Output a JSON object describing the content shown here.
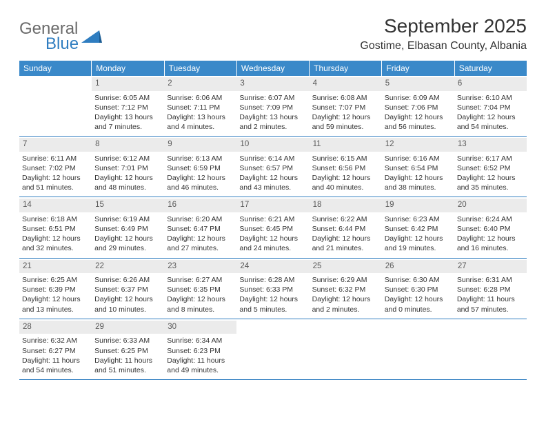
{
  "logo": {
    "word1": "General",
    "word2": "Blue"
  },
  "title": "September 2025",
  "location": "Gostime, Elbasan County, Albania",
  "colors": {
    "header_bg": "#3a89c9",
    "header_text": "#ffffff",
    "daynum_bg": "#ebebeb",
    "daynum_text": "#5a5a5a",
    "border": "#2f7dc0",
    "body_text": "#333333",
    "logo_gray": "#6b6b6b",
    "logo_blue": "#2f7dc0"
  },
  "day_names": [
    "Sunday",
    "Monday",
    "Tuesday",
    "Wednesday",
    "Thursday",
    "Friday",
    "Saturday"
  ],
  "weeks": [
    [
      null,
      {
        "n": "1",
        "sr": "Sunrise: 6:05 AM",
        "ss": "Sunset: 7:12 PM",
        "dl": "Daylight: 13 hours and 7 minutes."
      },
      {
        "n": "2",
        "sr": "Sunrise: 6:06 AM",
        "ss": "Sunset: 7:11 PM",
        "dl": "Daylight: 13 hours and 4 minutes."
      },
      {
        "n": "3",
        "sr": "Sunrise: 6:07 AM",
        "ss": "Sunset: 7:09 PM",
        "dl": "Daylight: 13 hours and 2 minutes."
      },
      {
        "n": "4",
        "sr": "Sunrise: 6:08 AM",
        "ss": "Sunset: 7:07 PM",
        "dl": "Daylight: 12 hours and 59 minutes."
      },
      {
        "n": "5",
        "sr": "Sunrise: 6:09 AM",
        "ss": "Sunset: 7:06 PM",
        "dl": "Daylight: 12 hours and 56 minutes."
      },
      {
        "n": "6",
        "sr": "Sunrise: 6:10 AM",
        "ss": "Sunset: 7:04 PM",
        "dl": "Daylight: 12 hours and 54 minutes."
      }
    ],
    [
      {
        "n": "7",
        "sr": "Sunrise: 6:11 AM",
        "ss": "Sunset: 7:02 PM",
        "dl": "Daylight: 12 hours and 51 minutes."
      },
      {
        "n": "8",
        "sr": "Sunrise: 6:12 AM",
        "ss": "Sunset: 7:01 PM",
        "dl": "Daylight: 12 hours and 48 minutes."
      },
      {
        "n": "9",
        "sr": "Sunrise: 6:13 AM",
        "ss": "Sunset: 6:59 PM",
        "dl": "Daylight: 12 hours and 46 minutes."
      },
      {
        "n": "10",
        "sr": "Sunrise: 6:14 AM",
        "ss": "Sunset: 6:57 PM",
        "dl": "Daylight: 12 hours and 43 minutes."
      },
      {
        "n": "11",
        "sr": "Sunrise: 6:15 AM",
        "ss": "Sunset: 6:56 PM",
        "dl": "Daylight: 12 hours and 40 minutes."
      },
      {
        "n": "12",
        "sr": "Sunrise: 6:16 AM",
        "ss": "Sunset: 6:54 PM",
        "dl": "Daylight: 12 hours and 38 minutes."
      },
      {
        "n": "13",
        "sr": "Sunrise: 6:17 AM",
        "ss": "Sunset: 6:52 PM",
        "dl": "Daylight: 12 hours and 35 minutes."
      }
    ],
    [
      {
        "n": "14",
        "sr": "Sunrise: 6:18 AM",
        "ss": "Sunset: 6:51 PM",
        "dl": "Daylight: 12 hours and 32 minutes."
      },
      {
        "n": "15",
        "sr": "Sunrise: 6:19 AM",
        "ss": "Sunset: 6:49 PM",
        "dl": "Daylight: 12 hours and 29 minutes."
      },
      {
        "n": "16",
        "sr": "Sunrise: 6:20 AM",
        "ss": "Sunset: 6:47 PM",
        "dl": "Daylight: 12 hours and 27 minutes."
      },
      {
        "n": "17",
        "sr": "Sunrise: 6:21 AM",
        "ss": "Sunset: 6:45 PM",
        "dl": "Daylight: 12 hours and 24 minutes."
      },
      {
        "n": "18",
        "sr": "Sunrise: 6:22 AM",
        "ss": "Sunset: 6:44 PM",
        "dl": "Daylight: 12 hours and 21 minutes."
      },
      {
        "n": "19",
        "sr": "Sunrise: 6:23 AM",
        "ss": "Sunset: 6:42 PM",
        "dl": "Daylight: 12 hours and 19 minutes."
      },
      {
        "n": "20",
        "sr": "Sunrise: 6:24 AM",
        "ss": "Sunset: 6:40 PM",
        "dl": "Daylight: 12 hours and 16 minutes."
      }
    ],
    [
      {
        "n": "21",
        "sr": "Sunrise: 6:25 AM",
        "ss": "Sunset: 6:39 PM",
        "dl": "Daylight: 12 hours and 13 minutes."
      },
      {
        "n": "22",
        "sr": "Sunrise: 6:26 AM",
        "ss": "Sunset: 6:37 PM",
        "dl": "Daylight: 12 hours and 10 minutes."
      },
      {
        "n": "23",
        "sr": "Sunrise: 6:27 AM",
        "ss": "Sunset: 6:35 PM",
        "dl": "Daylight: 12 hours and 8 minutes."
      },
      {
        "n": "24",
        "sr": "Sunrise: 6:28 AM",
        "ss": "Sunset: 6:33 PM",
        "dl": "Daylight: 12 hours and 5 minutes."
      },
      {
        "n": "25",
        "sr": "Sunrise: 6:29 AM",
        "ss": "Sunset: 6:32 PM",
        "dl": "Daylight: 12 hours and 2 minutes."
      },
      {
        "n": "26",
        "sr": "Sunrise: 6:30 AM",
        "ss": "Sunset: 6:30 PM",
        "dl": "Daylight: 12 hours and 0 minutes."
      },
      {
        "n": "27",
        "sr": "Sunrise: 6:31 AM",
        "ss": "Sunset: 6:28 PM",
        "dl": "Daylight: 11 hours and 57 minutes."
      }
    ],
    [
      {
        "n": "28",
        "sr": "Sunrise: 6:32 AM",
        "ss": "Sunset: 6:27 PM",
        "dl": "Daylight: 11 hours and 54 minutes."
      },
      {
        "n": "29",
        "sr": "Sunrise: 6:33 AM",
        "ss": "Sunset: 6:25 PM",
        "dl": "Daylight: 11 hours and 51 minutes."
      },
      {
        "n": "30",
        "sr": "Sunrise: 6:34 AM",
        "ss": "Sunset: 6:23 PM",
        "dl": "Daylight: 11 hours and 49 minutes."
      },
      null,
      null,
      null,
      null
    ]
  ]
}
